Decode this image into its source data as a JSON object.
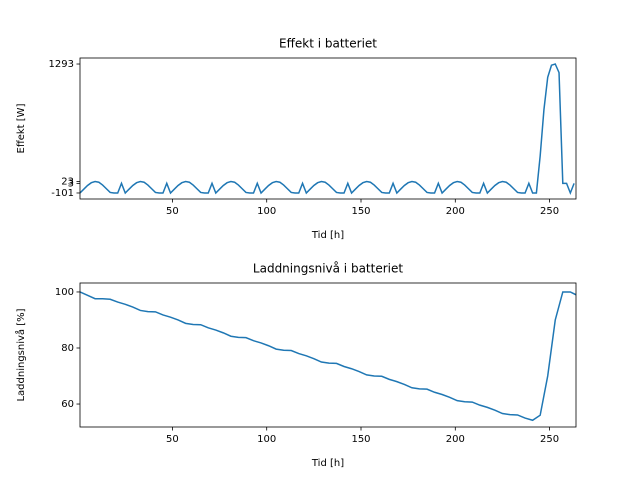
{
  "chart_data": [
    {
      "type": "line",
      "title": "Effekt i batteriet",
      "x_label": "Tid [h]",
      "y_label": "Effekt [W]",
      "xlim": [
        1,
        264
      ],
      "ylim": [
        -166,
        1358
      ],
      "xticks": [
        50,
        100,
        150,
        200,
        250
      ],
      "yticks": [
        -101,
        3,
        23,
        1293
      ],
      "color": "#1f77b4",
      "x": [
        1,
        3,
        5,
        7,
        9,
        11,
        13,
        15,
        17,
        19,
        21,
        23,
        25,
        27,
        29,
        31,
        33,
        35,
        37,
        39,
        41,
        43,
        45,
        47,
        49,
        51,
        53,
        55,
        57,
        59,
        61,
        63,
        65,
        67,
        69,
        71,
        73,
        75,
        77,
        79,
        81,
        83,
        85,
        87,
        89,
        91,
        93,
        95,
        97,
        99,
        101,
        103,
        105,
        107,
        109,
        111,
        113,
        115,
        117,
        119,
        121,
        123,
        125,
        127,
        129,
        131,
        133,
        135,
        137,
        139,
        141,
        143,
        145,
        147,
        149,
        151,
        153,
        155,
        157,
        159,
        161,
        163,
        165,
        167,
        169,
        171,
        173,
        175,
        177,
        179,
        181,
        183,
        185,
        187,
        189,
        191,
        193,
        195,
        197,
        199,
        201,
        203,
        205,
        207,
        209,
        211,
        213,
        215,
        217,
        219,
        221,
        223,
        225,
        227,
        229,
        231,
        233,
        235,
        237,
        239,
        241,
        243,
        245,
        247,
        249,
        251,
        253,
        255,
        257,
        259,
        261,
        263
      ],
      "values": [
        -101,
        -60,
        -20,
        10,
        23,
        15,
        -15,
        -55,
        -95,
        -101,
        -101,
        3,
        -101,
        -60,
        -20,
        10,
        23,
        15,
        -15,
        -55,
        -95,
        -101,
        -101,
        3,
        -101,
        -60,
        -20,
        10,
        23,
        15,
        -15,
        -55,
        -95,
        -101,
        -101,
        3,
        -101,
        -60,
        -20,
        10,
        23,
        15,
        -15,
        -55,
        -95,
        -101,
        -101,
        3,
        -101,
        -60,
        -20,
        10,
        23,
        15,
        -15,
        -55,
        -95,
        -101,
        -101,
        3,
        -101,
        -60,
        -20,
        10,
        23,
        15,
        -15,
        -55,
        -95,
        -101,
        -101,
        3,
        -101,
        -60,
        -20,
        10,
        23,
        15,
        -15,
        -55,
        -95,
        -101,
        -101,
        3,
        -101,
        -60,
        -20,
        10,
        23,
        15,
        -15,
        -55,
        -95,
        -101,
        -101,
        3,
        -101,
        -60,
        -20,
        10,
        23,
        15,
        -15,
        -55,
        -95,
        -101,
        -101,
        3,
        -101,
        -60,
        -20,
        10,
        23,
        15,
        -15,
        -55,
        -95,
        -101,
        -101,
        3,
        -101,
        -101,
        300,
        800,
        1150,
        1280,
        1293,
        1200,
        3,
        3,
        -101,
        3
      ]
    },
    {
      "type": "line",
      "title": "Laddningsnivå i batteriet",
      "x_label": "Tid [h]",
      "y_label": "Laddningsnivå [%]",
      "xlim": [
        1,
        264
      ],
      "ylim": [
        51.8,
        103.2
      ],
      "xticks": [
        50,
        100,
        150,
        200,
        250
      ],
      "yticks": [
        60,
        80,
        100
      ],
      "color": "#1f77b4",
      "x": [
        1,
        5,
        9,
        13,
        17,
        21,
        25,
        29,
        33,
        37,
        41,
        45,
        49,
        53,
        57,
        61,
        65,
        69,
        73,
        77,
        81,
        85,
        89,
        93,
        97,
        101,
        105,
        109,
        113,
        117,
        121,
        125,
        129,
        133,
        137,
        141,
        145,
        149,
        153,
        157,
        161,
        165,
        169,
        173,
        177,
        181,
        185,
        189,
        193,
        197,
        201,
        205,
        209,
        213,
        217,
        221,
        225,
        229,
        233,
        237,
        241,
        245,
        249,
        253,
        257,
        261,
        264
      ],
      "values": [
        100,
        98.8,
        97.6,
        97.6,
        97.4,
        96.4,
        95.6,
        94.6,
        93.4,
        93.0,
        92.9,
        91.8,
        91.0,
        90.0,
        88.8,
        88.4,
        88.3,
        87.2,
        86.4,
        85.4,
        84.2,
        83.8,
        83.7,
        82.6,
        81.8,
        80.8,
        79.6,
        79.2,
        79.1,
        78.0,
        77.2,
        76.2,
        75.0,
        74.6,
        74.5,
        73.4,
        72.6,
        71.6,
        70.4,
        70.0,
        69.9,
        68.8,
        68.0,
        67.0,
        65.8,
        65.4,
        65.3,
        64.2,
        63.4,
        62.4,
        61.2,
        60.8,
        60.7,
        59.6,
        58.8,
        57.8,
        56.6,
        56.2,
        56.1,
        55.0,
        54.2,
        56.0,
        70,
        90,
        100,
        100,
        99
      ]
    }
  ]
}
